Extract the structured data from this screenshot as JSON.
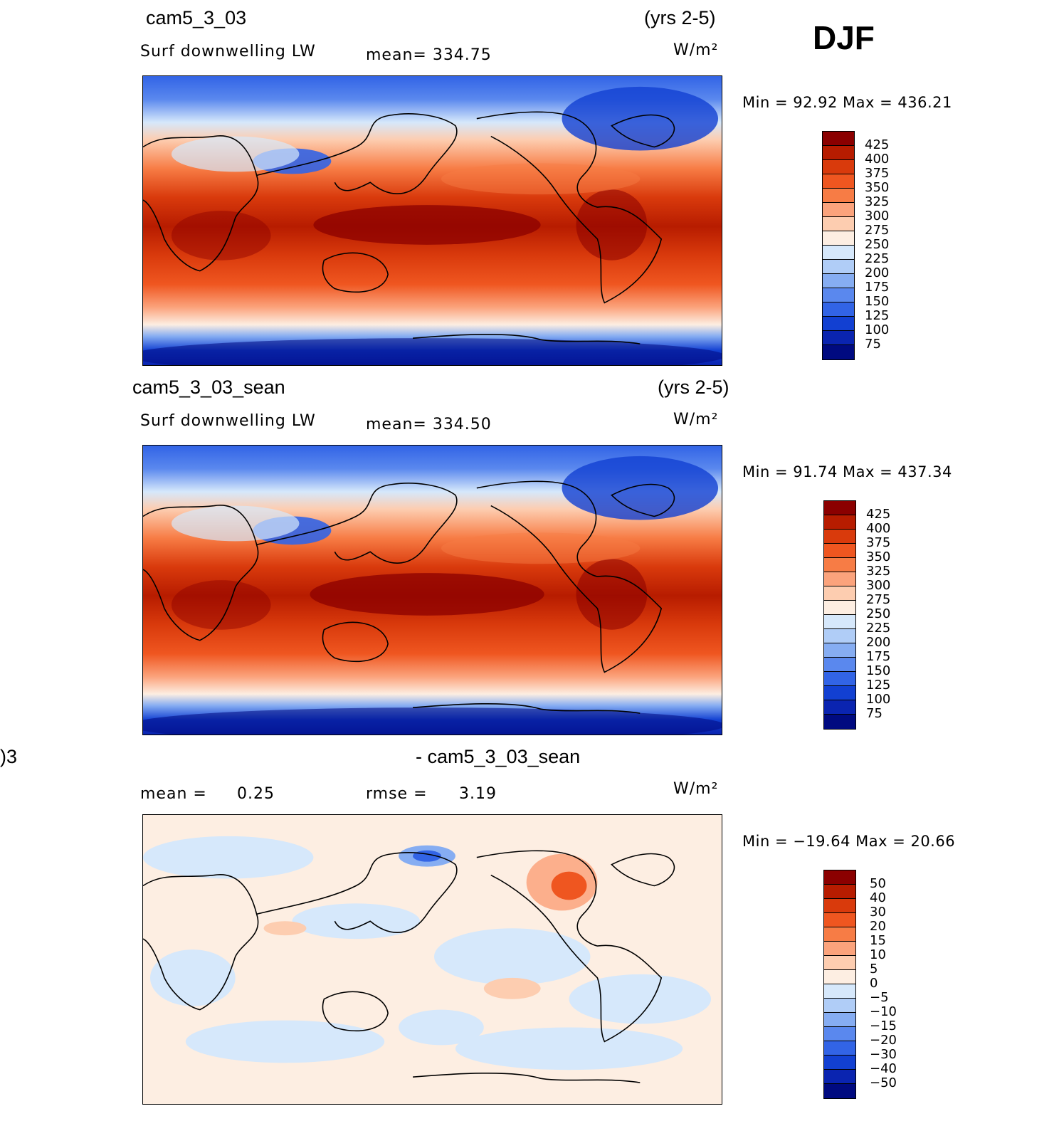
{
  "season": "DJF",
  "panels": [
    {
      "case": "cam5_3_03",
      "years": "(yrs 2-5)",
      "variable": "Surf downwelling LW",
      "stat": "mean=  334.75",
      "units": "W/m²",
      "minmax": "Min =   92.92  Max  =  436.21",
      "colorbar": {
        "labels": [
          "425",
          "400",
          "375",
          "350",
          "325",
          "300",
          "275",
          "250",
          "225",
          "200",
          "175",
          "150",
          "125",
          "100",
          "75"
        ],
        "colors": [
          "#8b0000",
          "#b71c00",
          "#d93a0c",
          "#ef5620",
          "#f77c45",
          "#fba37c",
          "#fdcdb0",
          "#fdeee2",
          "#d6e8fb",
          "#b0cdf7",
          "#86adf2",
          "#5a88ee",
          "#3264e6",
          "#1240d2",
          "#0a24b0",
          "#000a80"
        ]
      }
    },
    {
      "case": "cam5_3_03_sean",
      "years": "(yrs 2-5)",
      "variable": "Surf downwelling LW",
      "stat": "mean=  334.50",
      "units": "W/m²",
      "minmax": "Min =   91.74  Max  =  437.34",
      "colorbar": {
        "labels": [
          "425",
          "400",
          "375",
          "350",
          "325",
          "300",
          "275",
          "250",
          "225",
          "200",
          "175",
          "150",
          "125",
          "100",
          "75"
        ],
        "colors": [
          "#8b0000",
          "#b71c00",
          "#d93a0c",
          "#ef5620",
          "#f77c45",
          "#fba37c",
          "#fdcdb0",
          "#fdeee2",
          "#d6e8fb",
          "#b0cdf7",
          "#86adf2",
          "#5a88ee",
          "#3264e6",
          "#1240d2",
          "#0a24b0",
          "#000a80"
        ]
      }
    },
    {
      "case_left": ")3",
      "case": "- cam5_3_03_sean",
      "stat_mean_label": "mean =",
      "stat_mean_value": "0.25",
      "stat_rmse_label": "rmse =",
      "stat_rmse_value": "3.19",
      "units": "W/m²",
      "minmax": "Min = −19.64  Max  =    20.66",
      "colorbar": {
        "labels": [
          "50",
          "40",
          "30",
          "20",
          "15",
          "10",
          "5",
          "0",
          "−5",
          "−10",
          "−15",
          "−20",
          "−30",
          "−40",
          "−50"
        ],
        "colors": [
          "#8b0000",
          "#b71c00",
          "#d93a0c",
          "#ef5620",
          "#f77c45",
          "#fba37c",
          "#fdcdb0",
          "#fdeee2",
          "#d6e8fb",
          "#b0cdf7",
          "#86adf2",
          "#5a88ee",
          "#3264e6",
          "#1240d2",
          "#0a24b0",
          "#000a80"
        ]
      }
    }
  ]
}
